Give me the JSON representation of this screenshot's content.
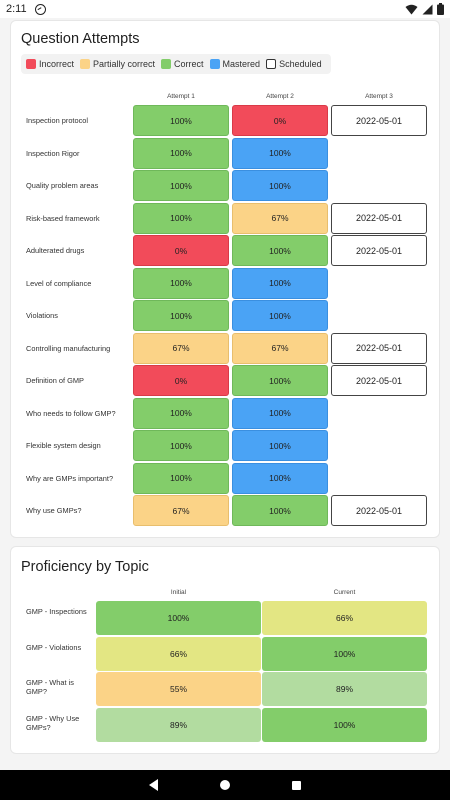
{
  "status_bar": {
    "time": "2:11",
    "icons": [
      "sync-circle-icon",
      "wifi-icon",
      "signal-icon",
      "battery-icon"
    ]
  },
  "colors": {
    "incorrect": "#f24b5a",
    "partially_correct": "#fbd387",
    "correct": "#83cd6a",
    "mastered": "#4aa3f5",
    "scheduled": "#ffffff",
    "prof_100": "#83cd6a",
    "prof_89": "#b2dca0",
    "prof_66": "#e3e683",
    "prof_55": "#fbd387"
  },
  "question_attempts": {
    "title": "Question Attempts",
    "legend": [
      {
        "key": "incorrect",
        "label": "Incorrect"
      },
      {
        "key": "partial",
        "label": "Partially correct"
      },
      {
        "key": "correct",
        "label": "Correct"
      },
      {
        "key": "mastered",
        "label": "Mastered"
      },
      {
        "key": "scheduled",
        "label": "Scheduled"
      }
    ],
    "columns": [
      "Attempt 1",
      "Attempt 2",
      "Attempt 3"
    ],
    "rows": [
      {
        "label": "Inspection protocol",
        "cells": [
          {
            "status": "correct",
            "text": "100%"
          },
          {
            "status": "incorrect",
            "text": "0%"
          },
          {
            "status": "scheduled",
            "text": "2022-05-01"
          }
        ]
      },
      {
        "label": "Inspection Rigor",
        "cells": [
          {
            "status": "correct",
            "text": "100%"
          },
          {
            "status": "mastered",
            "text": "100%"
          }
        ]
      },
      {
        "label": "Quality problem areas",
        "cells": [
          {
            "status": "correct",
            "text": "100%"
          },
          {
            "status": "mastered",
            "text": "100%"
          }
        ]
      },
      {
        "label": "Risk-based framework",
        "cells": [
          {
            "status": "correct",
            "text": "100%"
          },
          {
            "status": "partial",
            "text": "67%"
          },
          {
            "status": "scheduled",
            "text": "2022-05-01"
          }
        ]
      },
      {
        "label": "Adulterated drugs",
        "cells": [
          {
            "status": "incorrect",
            "text": "0%"
          },
          {
            "status": "correct",
            "text": "100%"
          },
          {
            "status": "scheduled",
            "text": "2022-05-01"
          }
        ]
      },
      {
        "label": "Level of compliance",
        "cells": [
          {
            "status": "correct",
            "text": "100%"
          },
          {
            "status": "mastered",
            "text": "100%"
          }
        ]
      },
      {
        "label": "Violations",
        "cells": [
          {
            "status": "correct",
            "text": "100%"
          },
          {
            "status": "mastered",
            "text": "100%"
          }
        ]
      },
      {
        "label": "Controlling manufacturing",
        "cells": [
          {
            "status": "partial",
            "text": "67%"
          },
          {
            "status": "partial",
            "text": "67%"
          },
          {
            "status": "scheduled",
            "text": "2022-05-01"
          }
        ]
      },
      {
        "label": "Definition of GMP",
        "cells": [
          {
            "status": "incorrect",
            "text": "0%"
          },
          {
            "status": "correct",
            "text": "100%"
          },
          {
            "status": "scheduled",
            "text": "2022-05-01"
          }
        ]
      },
      {
        "label": "Who needs to follow GMP?",
        "cells": [
          {
            "status": "correct",
            "text": "100%"
          },
          {
            "status": "mastered",
            "text": "100%"
          }
        ]
      },
      {
        "label": "Flexible system design",
        "cells": [
          {
            "status": "correct",
            "text": "100%"
          },
          {
            "status": "mastered",
            "text": "100%"
          }
        ]
      },
      {
        "label": "Why are GMPs important?",
        "cells": [
          {
            "status": "correct",
            "text": "100%"
          },
          {
            "status": "mastered",
            "text": "100%"
          }
        ]
      },
      {
        "label": "Why use GMPs?",
        "cells": [
          {
            "status": "partial",
            "text": "67%"
          },
          {
            "status": "correct",
            "text": "100%"
          },
          {
            "status": "scheduled",
            "text": "2022-05-01"
          }
        ]
      }
    ]
  },
  "proficiency": {
    "title": "Proficiency by Topic",
    "columns": [
      "Initial",
      "Current"
    ],
    "rows": [
      {
        "label": "GMP - Inspections",
        "initial": {
          "value": 100,
          "text": "100%"
        },
        "current": {
          "value": 66,
          "text": "66%"
        }
      },
      {
        "label": "GMP - Violations",
        "initial": {
          "value": 66,
          "text": "66%"
        },
        "current": {
          "value": 100,
          "text": "100%"
        }
      },
      {
        "label": "GMP - What is GMP?",
        "initial": {
          "value": 55,
          "text": "55%"
        },
        "current": {
          "value": 89,
          "text": "89%"
        }
      },
      {
        "label": "GMP - Why Use GMPs?",
        "initial": {
          "value": 89,
          "text": "89%"
        },
        "current": {
          "value": 100,
          "text": "100%"
        }
      }
    ]
  },
  "nav_bar": {
    "icons": [
      "back-icon",
      "home-icon",
      "recents-icon"
    ]
  }
}
